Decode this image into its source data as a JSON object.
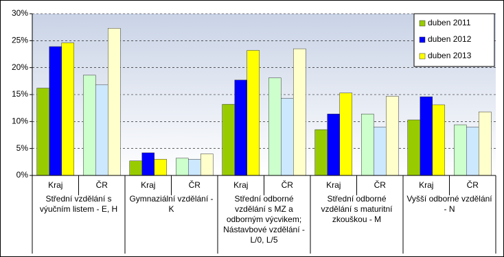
{
  "chart_data": {
    "type": "bar",
    "categories": [
      "Kraj",
      "ČR",
      "Kraj",
      "ČR",
      "Kraj",
      "ČR",
      "Kraj",
      "ČR",
      "Kraj",
      "ČR"
    ],
    "group_labels": [
      "Střední vzdělání s výučním listem - E, H",
      "Gymnaziální vzdělání - K",
      "Střední odborné vzdělání s MZ a odborným výcvikem; Nástavbové vzdělání - L/0, L/5",
      "Střední odborné vzdělání s maturitní zkouškou - M",
      "Vyšší odborné vzdělání - N"
    ],
    "series": [
      {
        "name": "duben 2011",
        "color": "#99cc00",
        "colors": [
          "#99cc00",
          "#ccffcc",
          "#99cc00",
          "#ccffcc",
          "#99cc00",
          "#ccffcc",
          "#99cc00",
          "#ccffcc",
          "#99cc00",
          "#ccffcc"
        ],
        "values": [
          16.2,
          18.6,
          2.7,
          3.2,
          13.2,
          18.1,
          8.5,
          11.4,
          10.3,
          9.4
        ]
      },
      {
        "name": "duben 2012",
        "color": "#0000ff",
        "colors": [
          "#0000ff",
          "#cce8ff",
          "#0000ff",
          "#cce8ff",
          "#0000ff",
          "#cce8ff",
          "#0000ff",
          "#cce8ff",
          "#0000ff",
          "#cce8ff"
        ],
        "values": [
          23.9,
          16.8,
          4.2,
          3.0,
          17.7,
          14.3,
          11.4,
          9.0,
          14.6,
          9.0
        ]
      },
      {
        "name": "duben 2013",
        "color": "#ffff00",
        "colors": [
          "#ffff00",
          "#ffffcc",
          "#ffff00",
          "#ffffcc",
          "#ffff00",
          "#ffffcc",
          "#ffff00",
          "#ffffcc",
          "#ffff00",
          "#ffffcc"
        ],
        "values": [
          24.6,
          27.3,
          3.0,
          4.0,
          23.2,
          23.5,
          15.3,
          14.7,
          13.1,
          11.8
        ]
      }
    ],
    "ylim": [
      0,
      30
    ],
    "yticks": [
      {
        "value": 0,
        "label": "0%"
      },
      {
        "value": 5,
        "label": "5%"
      },
      {
        "value": 10,
        "label": "10%"
      },
      {
        "value": 15,
        "label": "15%"
      },
      {
        "value": 20,
        "label": "20%"
      },
      {
        "value": 25,
        "label": "25%"
      },
      {
        "value": 30,
        "label": "30%"
      }
    ],
    "grid": true,
    "legend": "top-right"
  }
}
